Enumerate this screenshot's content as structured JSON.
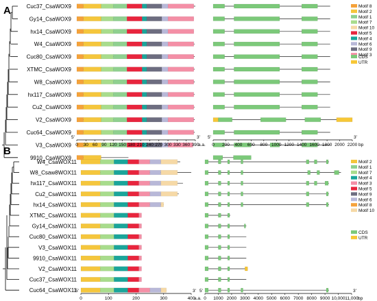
{
  "colors": {
    "Motif 1": "#8fd08f",
    "Motif 2": "#f5c63c",
    "Motif 3": "#f48fa6",
    "Motif 4": "#1aa59a",
    "Motif 5": "#e8253d",
    "Motif 6": "#b8b8d8",
    "Motif 7": "#a8dc8c",
    "Motif 8": "#f5a23a",
    "Motif 9": "#6d6d80",
    "Motif 10": "#f6d9a6",
    "CDS": "#7cc97a",
    "UTR": "#f7c736"
  },
  "panelA": {
    "label": "A",
    "genes": [
      "Cuc37_CsaWOX9",
      "Gy14_CsaWOX9",
      "hx14_CsaWOX9",
      "W4_CsaWOX9",
      "Cuc80_CsaWOX9",
      "XTMC_CsaWOX9",
      "W8_CsaWOX9",
      "hx117_CsaWOX9",
      "Cu2_CsaWOX9",
      "V2_CsaWOX9",
      "Cuc64_CsaWOX9",
      "V3_CsaWOX9",
      "9910_CsaWOX9"
    ],
    "protein_lengths": [
      390,
      385,
      385,
      388,
      388,
      388,
      388,
      388,
      388,
      388,
      388,
      382,
      170
    ],
    "motifs_full": [
      [
        "Motif 8",
        0,
        22
      ],
      [
        "Motif 2",
        22,
        80
      ],
      [
        "Motif 7",
        80,
        120
      ],
      [
        "Motif 1",
        120,
        165
      ],
      [
        "Motif 5",
        165,
        215
      ],
      [
        "Motif 4",
        215,
        230
      ],
      [
        "Motif 9",
        230,
        280
      ],
      [
        "Motif 6",
        280,
        300
      ],
      [
        "Motif 3",
        300,
        385
      ]
    ],
    "motifs_9910": [
      [
        "Motif 8",
        0,
        22
      ],
      [
        "Motif 2",
        22,
        80
      ]
    ],
    "motif_axis": {
      "ticks": [
        0,
        30,
        60,
        90,
        120,
        150,
        180,
        210,
        240,
        270,
        300,
        330,
        360,
        390
      ],
      "min": 0,
      "max": 390,
      "unit": "a.a.",
      "end5": "5'",
      "end3": "3'"
    },
    "gene_structures": [
      {
        "len": 1850,
        "cds": [
          [
            0,
            180
          ],
          [
            330,
            1050
          ],
          [
            1400,
            1650
          ]
        ],
        "utr": []
      },
      {
        "len": 1850,
        "cds": [
          [
            0,
            180
          ],
          [
            330,
            1050
          ],
          [
            1400,
            1650
          ]
        ],
        "utr": []
      },
      {
        "len": 1850,
        "cds": [
          [
            0,
            180
          ],
          [
            330,
            1050
          ],
          [
            1400,
            1650
          ]
        ],
        "utr": []
      },
      {
        "len": 1850,
        "cds": [
          [
            0,
            180
          ],
          [
            330,
            1050
          ],
          [
            1400,
            1650
          ]
        ],
        "utr": []
      },
      {
        "len": 1850,
        "cds": [
          [
            0,
            180
          ],
          [
            330,
            1050
          ],
          [
            1400,
            1650
          ]
        ],
        "utr": []
      },
      {
        "len": 1850,
        "cds": [
          [
            0,
            180
          ],
          [
            330,
            1050
          ],
          [
            1400,
            1650
          ]
        ],
        "utr": []
      },
      {
        "len": 1850,
        "cds": [
          [
            0,
            180
          ],
          [
            330,
            1050
          ],
          [
            1400,
            1650
          ]
        ],
        "utr": []
      },
      {
        "len": 1850,
        "cds": [
          [
            0,
            180
          ],
          [
            330,
            1050
          ],
          [
            1400,
            1650
          ]
        ],
        "utr": []
      },
      {
        "len": 1850,
        "cds": [
          [
            0,
            180
          ],
          [
            330,
            1050
          ],
          [
            1400,
            1650
          ]
        ],
        "utr": []
      },
      {
        "len": 2200,
        "cds": [
          [
            80,
            300
          ],
          [
            750,
            1150
          ],
          [
            1450,
            1700
          ]
        ],
        "utr": [
          [
            0,
            80
          ],
          [
            1950,
            2200
          ]
        ]
      },
      {
        "len": 1850,
        "cds": [
          [
            0,
            180
          ],
          [
            330,
            1050
          ],
          [
            1400,
            1650
          ]
        ],
        "utr": []
      },
      {
        "len": 1850,
        "cds": [
          [
            0,
            180
          ],
          [
            330,
            600
          ],
          [
            900,
            1050
          ],
          [
            1400,
            1650
          ]
        ],
        "utr": []
      },
      {
        "len": 600,
        "cds": [
          [
            0,
            150
          ],
          [
            320,
            600
          ]
        ],
        "utr": []
      }
    ],
    "gene_axis": {
      "ticks": [
        0,
        200,
        400,
        600,
        800,
        1000,
        1200,
        1400,
        1600,
        1800,
        2000,
        2200
      ],
      "min": 0,
      "max": 2200,
      "unit": "bp",
      "end5": "5'",
      "end3": "3'"
    },
    "motif_legend": [
      "Motif 8",
      "Motif 2",
      "Motif 1",
      "Motif 7",
      "Motif 10",
      "Motif 5",
      "Motif 4",
      "Motif 6",
      "Motif 9",
      "Motif 3"
    ],
    "struct_legend": [
      "CDS",
      "UTR"
    ]
  },
  "panelB": {
    "label": "B",
    "genes": [
      "W4_CsaWOX11",
      "W8_Csaw8WOX11",
      "hx117_CsaWOX11",
      "Cu2_CsaWOX11",
      "hx14_CsaWOX11",
      "XTMC_CsaWOX11",
      "Gy14_CsaWOX11",
      "Cuc80_CsaWOX11",
      "V3_CsaWOX11",
      "9910_CsaWOX11",
      "V2_CsaWOX11",
      "Cuc37_CsaWOX11",
      "Cuc64_CsaWOX11"
    ],
    "protein_lengths": [
      360,
      400,
      370,
      355,
      300,
      220,
      220,
      220,
      220,
      220,
      220,
      220,
      310
    ],
    "motifs_long": [
      [
        "Motif 2",
        0,
        70
      ],
      [
        "Motif 7",
        70,
        120
      ],
      [
        "Motif 4",
        120,
        170
      ],
      [
        "Motif 5",
        170,
        210
      ],
      [
        "Motif 3",
        210,
        250
      ],
      [
        "Motif 6",
        250,
        290
      ],
      [
        "Motif 10",
        290,
        350
      ]
    ],
    "motifs_short": [
      [
        "Motif 2",
        0,
        70
      ],
      [
        "Motif 7",
        70,
        120
      ],
      [
        "Motif 4",
        120,
        170
      ],
      [
        "Motif 5",
        170,
        210
      ],
      [
        "Motif 3",
        210,
        240
      ]
    ],
    "motif_axis": {
      "ticks": [
        0,
        100,
        200,
        300,
        400
      ],
      "min": 0,
      "max": 400,
      "unit": "a.a.",
      "end5": "5'",
      "end3": "3'"
    },
    "gene_structures": [
      {
        "len": 9300,
        "cds": [
          [
            0,
            250
          ],
          [
            1000,
            1200
          ],
          [
            1700,
            1850
          ],
          [
            2700,
            2850
          ],
          [
            7600,
            7800
          ],
          [
            8200,
            8400
          ],
          [
            9100,
            9250
          ]
        ],
        "utr": []
      },
      {
        "len": 10200,
        "cds": [
          [
            0,
            250
          ],
          [
            1000,
            1200
          ],
          [
            1700,
            1850
          ],
          [
            2700,
            2850
          ],
          [
            7700,
            7900
          ],
          [
            8400,
            8600
          ],
          [
            9700,
            10050
          ]
        ],
        "utr": []
      },
      {
        "len": 9300,
        "cds": [
          [
            0,
            250
          ],
          [
            1000,
            1200
          ],
          [
            1700,
            1850
          ],
          [
            2700,
            2850
          ],
          [
            7600,
            7800
          ],
          [
            8200,
            8400
          ],
          [
            9000,
            9250
          ]
        ],
        "utr": []
      },
      {
        "len": 9300,
        "cds": [
          [
            0,
            250
          ],
          [
            1000,
            1200
          ],
          [
            1700,
            1850
          ],
          [
            2700,
            2850
          ],
          [
            7600,
            7800
          ],
          [
            9100,
            9250
          ]
        ],
        "utr": []
      },
      {
        "len": 9300,
        "cds": [
          [
            0,
            250
          ],
          [
            1000,
            1200
          ],
          [
            1700,
            1850
          ],
          [
            2700,
            2850
          ],
          [
            7600,
            7800
          ],
          [
            9100,
            9250
          ]
        ],
        "utr": []
      },
      {
        "len": 1900,
        "cds": [
          [
            0,
            250
          ],
          [
            1000,
            1200
          ],
          [
            1700,
            1850
          ]
        ],
        "utr": []
      },
      {
        "len": 3100,
        "cds": [
          [
            0,
            250
          ],
          [
            1000,
            1200
          ],
          [
            1700,
            1850
          ],
          [
            2950,
            3050
          ]
        ],
        "utr": []
      },
      {
        "len": 3100,
        "cds": [
          [
            0,
            250
          ],
          [
            1000,
            1200
          ],
          [
            1700,
            1850
          ]
        ],
        "utr": []
      },
      {
        "len": 3100,
        "cds": [
          [
            0,
            250
          ],
          [
            1000,
            1200
          ],
          [
            1700,
            1850
          ]
        ],
        "utr": []
      },
      {
        "len": 3100,
        "cds": [
          [
            0,
            250
          ],
          [
            1000,
            1200
          ],
          [
            1700,
            1850
          ]
        ],
        "utr": []
      },
      {
        "len": 3200,
        "cds": [
          [
            0,
            250
          ],
          [
            1000,
            1200
          ],
          [
            1700,
            1850
          ]
        ],
        "utr": [
          [
            3000,
            3200
          ]
        ]
      },
      {
        "len": 3100,
        "cds": [
          [
            0,
            250
          ],
          [
            1000,
            1200
          ],
          [
            1700,
            1850
          ]
        ],
        "utr": []
      },
      {
        "len": 9300,
        "cds": [
          [
            0,
            250
          ],
          [
            1000,
            1200
          ],
          [
            1700,
            1850
          ],
          [
            2700,
            2850
          ],
          [
            9100,
            9250
          ]
        ],
        "utr": []
      }
    ],
    "gene_axis": {
      "ticks": [
        0,
        1000,
        2000,
        3000,
        4000,
        5000,
        6000,
        7000,
        8000,
        9000,
        10000,
        11000
      ],
      "tick_labels": [
        "0",
        "1000",
        "2000",
        "3000",
        "4000",
        "5000",
        "6000",
        "7000",
        "8000",
        "9000",
        "10,000",
        "11,000"
      ],
      "min": 0,
      "max": 11000,
      "unit": "bp",
      "end5": "5'",
      "end3": "3'"
    },
    "motif_legend": [
      "Motif 2",
      "Motif 1",
      "Motif 7",
      "Motif 4",
      "Motif 3",
      "Motif 5",
      "Motif 9",
      "Motif 6",
      "Motif 8",
      "Motif 10"
    ],
    "struct_legend": [
      "CDS",
      "UTR"
    ]
  }
}
